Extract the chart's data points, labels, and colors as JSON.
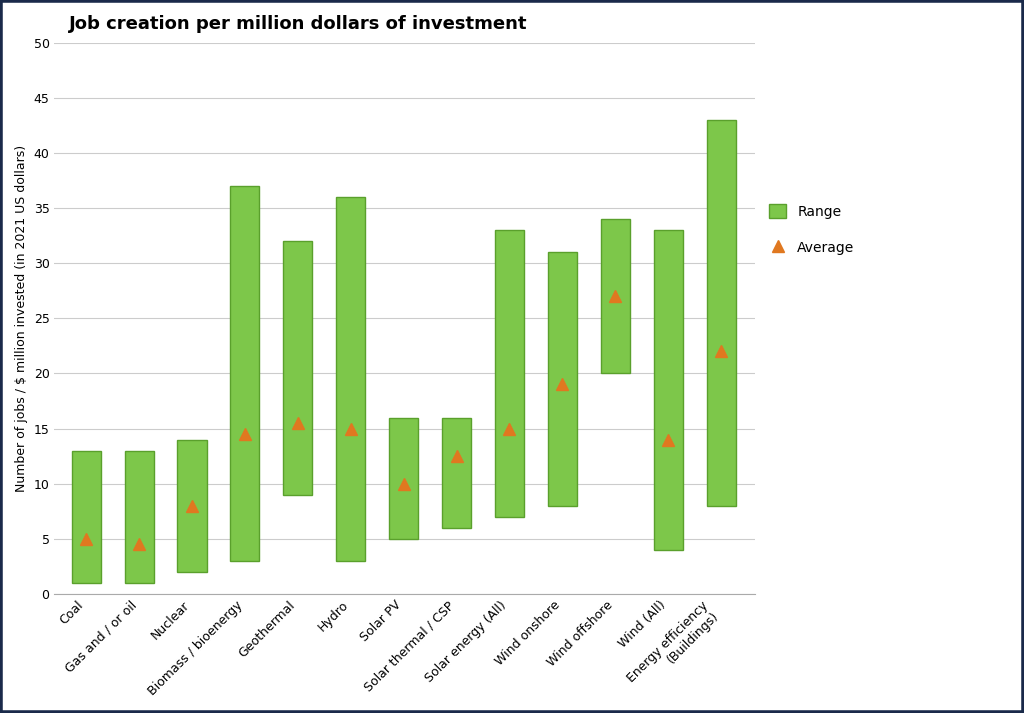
{
  "title": "Job creation per million dollars of investment",
  "ylabel": "Number of jobs / $ million invested (in 2021 US dollars)",
  "categories": [
    "Coal",
    "Gas and / or oil",
    "Nuclear",
    "Biomass / bioenergy",
    "Geothermal",
    "Hydro",
    "Solar PV",
    "Solar thermal / CSP",
    "Solar energy (All)",
    "Wind onshore",
    "Wind offshore",
    "Wind (All)",
    "Energy efficiency\n(Buildings)"
  ],
  "bar_bottom": [
    1,
    1,
    2,
    3,
    9,
    3,
    5,
    6,
    7,
    8,
    20,
    4,
    8
  ],
  "bar_top": [
    13,
    13,
    14,
    37,
    32,
    36,
    16,
    16,
    33,
    31,
    34,
    33,
    43
  ],
  "averages": [
    5,
    4.5,
    8,
    14.5,
    15.5,
    15,
    10,
    12.5,
    15,
    19,
    27,
    14,
    22
  ],
  "bar_color": "#7DC74A",
  "bar_edgecolor": "#5AA02C",
  "avg_color": "#E07820",
  "ylim": [
    0,
    50
  ],
  "yticks": [
    0,
    5,
    10,
    15,
    20,
    25,
    30,
    35,
    40,
    45,
    50
  ],
  "background_color": "#FFFFFF",
  "outer_border_color": "#1A2A4A",
  "title_fontsize": 13,
  "label_fontsize": 9,
  "tick_fontsize": 9,
  "legend_fontsize": 10
}
